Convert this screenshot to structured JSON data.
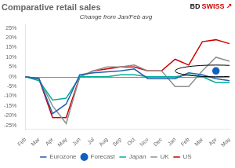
{
  "chart_data": {
    "type": "line",
    "title": "Comparative retail sales",
    "subtitle": "Change from Jan/Feb avg",
    "logo": [
      {
        "text": "BD",
        "color": "#1a1a1a"
      },
      {
        "text": "SWISS",
        "color": "#cc0000"
      },
      {
        "text": "↗",
        "color": "#cc0000"
      }
    ],
    "categories": [
      "Feb",
      "Mar",
      "Apr",
      "May",
      "Jun",
      "Jul",
      "Aug",
      "Sep",
      "Oct",
      "Nov",
      "Dec",
      "Jan",
      "Feb",
      "Mar",
      "Apr",
      "May"
    ],
    "series": [
      {
        "name": "Eurozone",
        "color": "#2060b0",
        "values": [
          0,
          -1,
          -19,
          -14,
          1,
          2,
          2.5,
          3,
          4,
          -1,
          -1,
          -1,
          2,
          1,
          -1,
          -2
        ]
      },
      {
        "name": "Forecast",
        "type": "scatter",
        "marker": "o",
        "color": "#1060c0",
        "values": [
          null,
          null,
          null,
          null,
          null,
          null,
          null,
          null,
          null,
          null,
          null,
          null,
          null,
          null,
          3,
          null
        ]
      },
      {
        "name": "Japan",
        "color": "#00b09a",
        "values": [
          0,
          -2,
          -12,
          -11,
          0,
          0,
          0,
          1,
          1,
          0,
          0,
          0,
          1,
          0,
          -3,
          -3
        ]
      },
      {
        "name": "UK",
        "color": "#909090",
        "values": [
          0,
          -1,
          -15,
          -24,
          0,
          3,
          5,
          5,
          6,
          3,
          3,
          -5,
          -5,
          3,
          10,
          8
        ]
      },
      {
        "name": "US",
        "color": "#cc0000",
        "values": [
          0,
          -1,
          -21,
          -21,
          0,
          3,
          4,
          5,
          5,
          3,
          3,
          9,
          6,
          18,
          19,
          17
        ]
      }
    ],
    "highlight": {
      "series": "Forecast",
      "radius": 3
    },
    "hlines": [
      0
    ],
    "ylim": [
      -27,
      27
    ],
    "yticks": [
      {
        "value": -25,
        "label": "-25%"
      },
      {
        "value": -20,
        "label": "-20%"
      },
      {
        "value": -15,
        "label": "-15%"
      },
      {
        "value": -10,
        "label": "-10%"
      },
      {
        "value": -5,
        "label": "-5%"
      },
      {
        "value": 0,
        "label": "0%"
      },
      {
        "value": 5,
        "label": "5%"
      },
      {
        "value": 10,
        "label": "10%"
      },
      {
        "value": 15,
        "label": "15%"
      },
      {
        "value": 20,
        "label": "20%"
      },
      {
        "value": 25,
        "label": "25%"
      }
    ],
    "grid": false,
    "legend": "bottom"
  }
}
